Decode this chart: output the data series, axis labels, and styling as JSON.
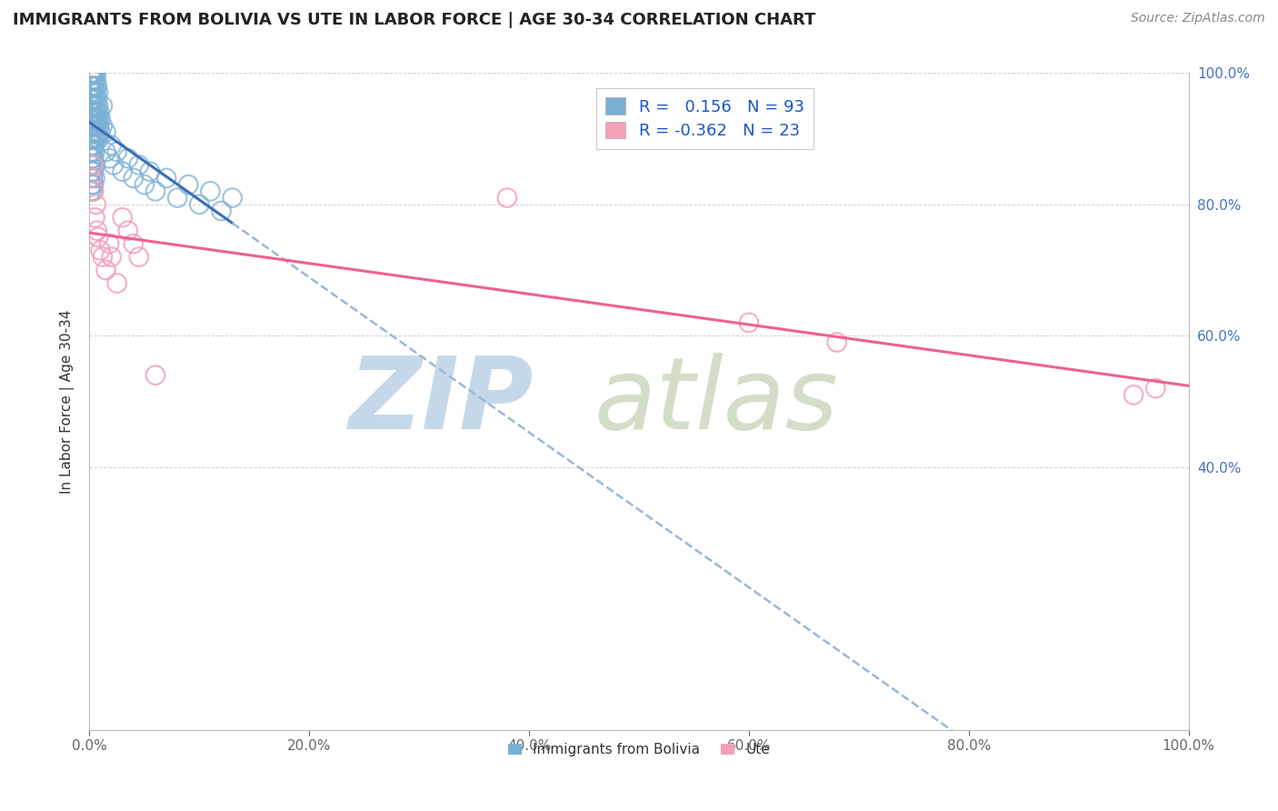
{
  "title": "IMMIGRANTS FROM BOLIVIA VS UTE IN LABOR FORCE | AGE 30-34 CORRELATION CHART",
  "source": "Source: ZipAtlas.com",
  "ylabel": "In Labor Force | Age 30-34",
  "xlim": [
    0.0,
    1.0
  ],
  "ylim": [
    0.0,
    1.0
  ],
  "xticks": [
    0.0,
    0.2,
    0.4,
    0.6,
    0.8,
    1.0
  ],
  "yticks": [
    0.4,
    0.6,
    0.8,
    1.0
  ],
  "xticklabels": [
    "0.0%",
    "20.0%",
    "40.0%",
    "60.0%",
    "80.0%",
    "100.0%"
  ],
  "yticklabels_right": [
    "40.0%",
    "60.0%",
    "80.0%",
    "100.0%"
  ],
  "bolivia_color": "#7bafd4",
  "ute_color": "#f4a0b8",
  "bolivia_line_color": "#3a6db5",
  "bolivia_line_color2": "#9ab8d8",
  "ute_line_color": "#f06090",
  "bolivia_R": 0.156,
  "bolivia_N": 93,
  "ute_R": -0.362,
  "ute_N": 23,
  "legend_label_bolivia": "Immigrants from Bolivia",
  "legend_label_ute": "Ute",
  "title_fontsize": 13,
  "axis_label_fontsize": 11,
  "tick_fontsize": 11,
  "legend_fontsize": 13,
  "bolivia_x": [
    0.001,
    0.001,
    0.001,
    0.001,
    0.001,
    0.001,
    0.001,
    0.001,
    0.001,
    0.001,
    0.002,
    0.002,
    0.002,
    0.002,
    0.002,
    0.002,
    0.002,
    0.002,
    0.002,
    0.002,
    0.003,
    0.003,
    0.003,
    0.003,
    0.003,
    0.003,
    0.003,
    0.003,
    0.003,
    0.003,
    0.004,
    0.004,
    0.004,
    0.004,
    0.004,
    0.004,
    0.004,
    0.004,
    0.004,
    0.004,
    0.005,
    0.005,
    0.005,
    0.005,
    0.005,
    0.005,
    0.005,
    0.005,
    0.005,
    0.006,
    0.006,
    0.006,
    0.006,
    0.006,
    0.006,
    0.007,
    0.007,
    0.007,
    0.007,
    0.007,
    0.008,
    0.008,
    0.008,
    0.008,
    0.009,
    0.009,
    0.009,
    0.01,
    0.01,
    0.012,
    0.012,
    0.015,
    0.015,
    0.018,
    0.02,
    0.022,
    0.025,
    0.03,
    0.035,
    0.04,
    0.045,
    0.05,
    0.055,
    0.06,
    0.07,
    0.08,
    0.09,
    0.1,
    0.11,
    0.12,
    0.13
  ],
  "bolivia_y": [
    0.92,
    0.9,
    0.94,
    0.96,
    0.98,
    1.0,
    0.88,
    0.86,
    0.84,
    0.82,
    0.93,
    0.91,
    0.95,
    0.97,
    0.99,
    1.0,
    0.89,
    0.87,
    0.85,
    0.83,
    0.92,
    0.9,
    0.94,
    0.96,
    0.98,
    1.0,
    0.88,
    0.86,
    0.84,
    0.82,
    0.93,
    0.91,
    0.95,
    0.97,
    0.99,
    1.0,
    0.89,
    0.87,
    0.85,
    0.83,
    0.92,
    0.9,
    0.94,
    0.96,
    0.98,
    1.0,
    0.88,
    0.86,
    0.84,
    0.93,
    0.91,
    0.95,
    0.97,
    0.99,
    1.0,
    0.92,
    0.9,
    0.94,
    0.96,
    0.98,
    0.93,
    0.91,
    0.95,
    0.97,
    0.92,
    0.9,
    0.94,
    0.93,
    0.91,
    0.92,
    0.95,
    0.88,
    0.91,
    0.87,
    0.89,
    0.86,
    0.88,
    0.85,
    0.87,
    0.84,
    0.86,
    0.83,
    0.85,
    0.82,
    0.84,
    0.81,
    0.83,
    0.8,
    0.82,
    0.79,
    0.81
  ],
  "ute_x": [
    0.002,
    0.003,
    0.004,
    0.005,
    0.006,
    0.007,
    0.008,
    0.01,
    0.012,
    0.015,
    0.018,
    0.02,
    0.025,
    0.03,
    0.035,
    0.04,
    0.045,
    0.06,
    0.38,
    0.6,
    0.68,
    0.95,
    0.97
  ],
  "ute_y": [
    0.84,
    0.86,
    0.82,
    0.78,
    0.8,
    0.76,
    0.75,
    0.73,
    0.72,
    0.7,
    0.74,
    0.72,
    0.68,
    0.78,
    0.76,
    0.74,
    0.72,
    0.54,
    0.81,
    0.62,
    0.59,
    0.51,
    0.52
  ]
}
